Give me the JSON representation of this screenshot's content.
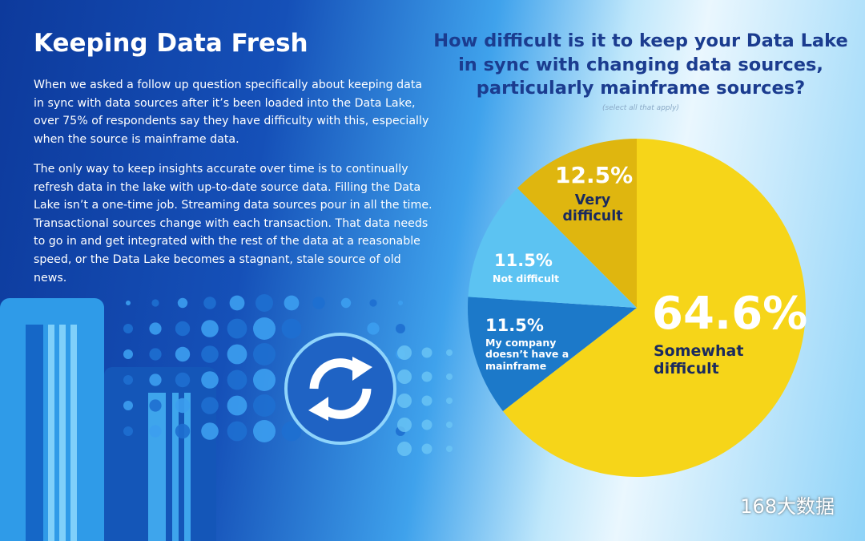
{
  "page": {
    "heading": "Keeping Data Fresh",
    "paragraphs": [
      "When we asked a follow up question specifically about keeping data in sync with data sources after it’s been loaded into the Data Lake, over 75% of respondents say they have difficulty with this, especially when the source is mainframe data.",
      "The only way to keep insights accurate over time is to continually refresh data in the lake with up-to-date source data. Filling the Data Lake isn’t a one-time job. Streaming data sources pour in all the time. Transactional sources change with each transaction. That data needs to go in and get integrated with the rest of the data at a reasonable speed, or the Data Lake becomes a stagnant, stale source of old news."
    ],
    "watermark": "168大数据"
  },
  "chart_data": {
    "type": "pie",
    "title": "How difficult is it to keep your Data Lake in sync with changing data sources, particularly mainframe sources?",
    "subtitle": "(select all that apply)",
    "categories": [
      "Somewhat difficult",
      "My company doesn’t have a mainframe",
      "Not difficult",
      "Very difficult"
    ],
    "values": [
      64.6,
      11.5,
      11.5,
      12.5
    ],
    "value_labels": [
      "64.6%",
      "11.5%",
      "11.5%",
      "12.5%"
    ],
    "colors": [
      "#f6d519",
      "#1c79c9",
      "#5cc3f2",
      "#dfb60f"
    ]
  }
}
